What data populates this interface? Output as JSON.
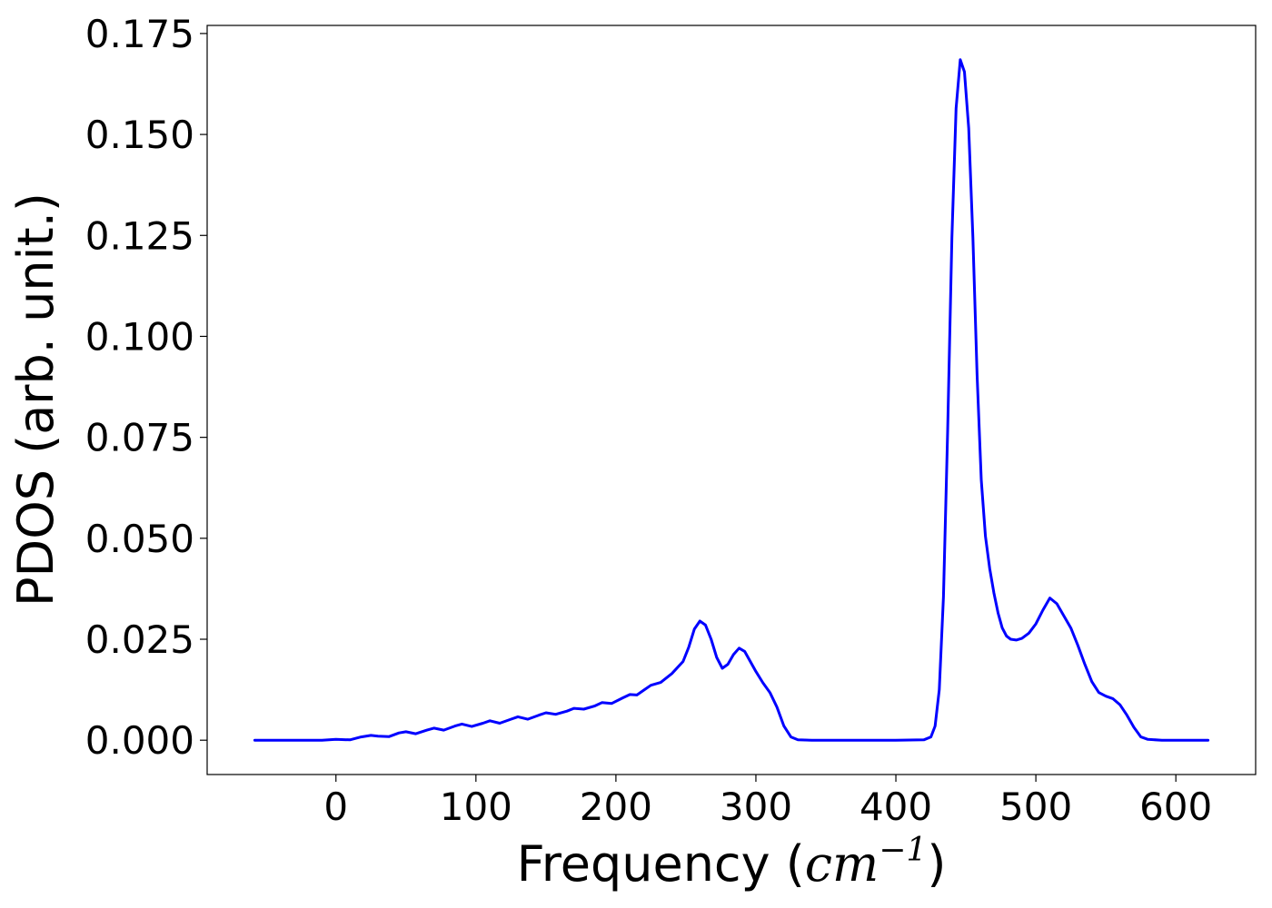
{
  "chart_data": {
    "type": "line",
    "xlabel": "Frequency (cm⁻¹)",
    "xlabel_parts": {
      "prefix": "Frequency (",
      "math": "cm",
      "sup": "−1",
      "suffix": ")"
    },
    "ylabel": "PDOS (arb. unit.)",
    "xlim": [
      -92,
      657
    ],
    "ylim": [
      -0.0085,
      0.177
    ],
    "x_ticks": [
      0,
      100,
      200,
      300,
      400,
      500,
      600
    ],
    "x_tick_labels": [
      "0",
      "100",
      "200",
      "300",
      "400",
      "500",
      "600"
    ],
    "y_ticks": [
      0.0,
      0.025,
      0.05,
      0.075,
      0.1,
      0.125,
      0.15,
      0.175
    ],
    "y_tick_labels": [
      "0.000",
      "0.025",
      "0.050",
      "0.075",
      "0.100",
      "0.125",
      "0.150",
      "0.175"
    ],
    "grid": false,
    "series": [
      {
        "color": "#0000ff",
        "x": [
          -58,
          -30,
          -10,
          0,
          10,
          18,
          25,
          30,
          38,
          45,
          50,
          57,
          65,
          70,
          77,
          85,
          90,
          97,
          105,
          110,
          117,
          125,
          130,
          137,
          145,
          150,
          157,
          165,
          170,
          177,
          185,
          190,
          197,
          205,
          210,
          215,
          220,
          225,
          232,
          240,
          248,
          252,
          256,
          260,
          264,
          268,
          272,
          276,
          280,
          284,
          288,
          292,
          296,
          300,
          305,
          310,
          315,
          320,
          325,
          330,
          340,
          360,
          400,
          420,
          425,
          428,
          431,
          434,
          437,
          440,
          443,
          446,
          449,
          452,
          455,
          458,
          461,
          464,
          467,
          470,
          473,
          476,
          479,
          482,
          486,
          490,
          495,
          500,
          505,
          510,
          515,
          520,
          525,
          530,
          535,
          540,
          545,
          550,
          555,
          560,
          565,
          570,
          575,
          580,
          590,
          600,
          623
        ],
        "y": [
          0,
          0,
          0,
          0.0002,
          0.0001,
          0.0008,
          0.0012,
          0.001,
          0.0009,
          0.0018,
          0.0021,
          0.0016,
          0.0025,
          0.003,
          0.0025,
          0.0035,
          0.004,
          0.0034,
          0.0042,
          0.0048,
          0.0042,
          0.0052,
          0.0058,
          0.0052,
          0.0062,
          0.0068,
          0.0064,
          0.0072,
          0.0079,
          0.0077,
          0.0085,
          0.0093,
          0.0091,
          0.0105,
          0.0113,
          0.0112,
          0.0124,
          0.0136,
          0.0143,
          0.0165,
          0.0195,
          0.023,
          0.0275,
          0.0295,
          0.0285,
          0.025,
          0.0205,
          0.0178,
          0.0188,
          0.0212,
          0.0228,
          0.022,
          0.0195,
          0.017,
          0.0142,
          0.0118,
          0.0082,
          0.0035,
          0.0008,
          0.0001,
          0,
          0,
          0,
          0.0001,
          0.0008,
          0.0035,
          0.0125,
          0.0355,
          0.0765,
          0.1245,
          0.1565,
          0.1685,
          0.1655,
          0.1515,
          0.1245,
          0.0905,
          0.0645,
          0.0505,
          0.0425,
          0.0365,
          0.0315,
          0.0278,
          0.0258,
          0.025,
          0.0248,
          0.0252,
          0.0265,
          0.0288,
          0.0322,
          0.0352,
          0.0338,
          0.0308,
          0.0278,
          0.0235,
          0.0188,
          0.0145,
          0.0118,
          0.0109,
          0.0103,
          0.0088,
          0.0062,
          0.0032,
          0.0008,
          0.0002,
          0,
          0,
          0
        ]
      }
    ]
  }
}
